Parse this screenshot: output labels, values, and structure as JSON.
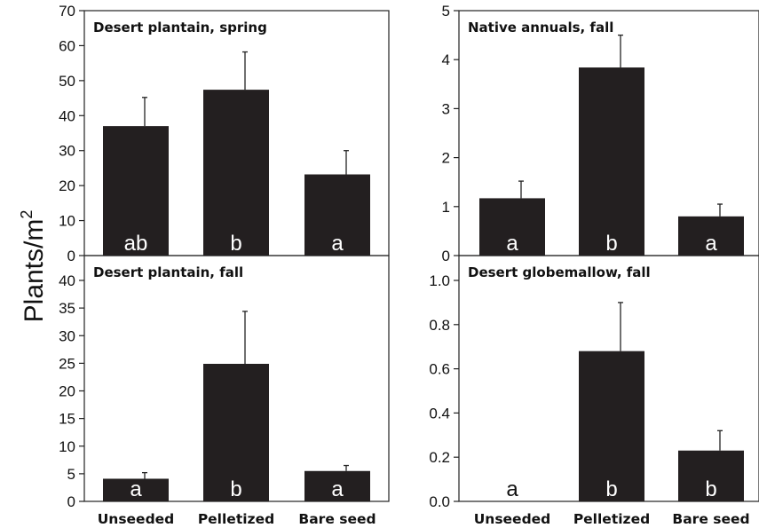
{
  "figure": {
    "ylabel": "Plants/m",
    "ylabel_superscript": "2"
  },
  "chart_data": [
    {
      "type": "bar",
      "title": "Desert plantain, spring",
      "categories": [
        "Unseeded",
        "Pelletized",
        "Bare seed"
      ],
      "values": [
        37,
        47.4,
        23.2
      ],
      "errors": [
        8.2,
        10.8,
        6.8
      ],
      "letters": [
        "ab",
        "b",
        "a"
      ],
      "ylim": [
        0,
        70
      ],
      "yticks": [
        0,
        10,
        20,
        30,
        40,
        50,
        60,
        70
      ],
      "ytick_labels": [
        "0",
        "10",
        "20",
        "30",
        "40",
        "50",
        "60",
        "70"
      ],
      "xlabel": "",
      "ylabel": "Plants/m2",
      "bar_color": "#231f20"
    },
    {
      "type": "bar",
      "title": "Native annuals, fall",
      "categories": [
        "Unseeded",
        "Pelletized",
        "Bare seed"
      ],
      "values": [
        1.17,
        3.84,
        0.8
      ],
      "errors": [
        0.35,
        0.66,
        0.25
      ],
      "letters": [
        "a",
        "b",
        "a"
      ],
      "ylim": [
        0,
        5
      ],
      "yticks": [
        0,
        1,
        2,
        3,
        4,
        5
      ],
      "ytick_labels": [
        "0",
        "1",
        "2",
        "3",
        "4",
        "5"
      ],
      "xlabel": "",
      "ylabel": "Plants/m2",
      "bar_color": "#231f20"
    },
    {
      "type": "bar",
      "title": "Desert plantain, fall",
      "categories": [
        "Unseeded",
        "Pelletized",
        "Bare seed"
      ],
      "values": [
        4.1,
        24.9,
        5.5
      ],
      "errors": [
        1.1,
        9.5,
        1.0
      ],
      "letters": [
        "a",
        "b",
        "a"
      ],
      "ylim": [
        0,
        40
      ],
      "yticks": [
        0,
        5,
        10,
        15,
        20,
        25,
        30,
        35,
        40
      ],
      "ytick_labels": [
        "0",
        "5",
        "10",
        "15",
        "20",
        "25",
        "30",
        "35",
        "40"
      ],
      "xlabel": "",
      "ylabel": "Plants/m2",
      "bar_color": "#231f20"
    },
    {
      "type": "bar",
      "title": "Desert globemallow, fall",
      "categories": [
        "Unseeded",
        "Pelletized",
        "Bare seed"
      ],
      "values": [
        0,
        0.68,
        0.23
      ],
      "errors": [
        0,
        0.22,
        0.09
      ],
      "letters": [
        "a",
        "b",
        "b"
      ],
      "ylim": [
        0,
        1.0
      ],
      "yticks": [
        0,
        0.2,
        0.4,
        0.6,
        0.8,
        1.0
      ],
      "ytick_labels": [
        "0.0",
        "0.2",
        "0.4",
        "0.6",
        "0.8",
        "1.0"
      ],
      "xlabel": "",
      "ylabel": "Plants/m2",
      "bar_color": "#231f20"
    }
  ]
}
